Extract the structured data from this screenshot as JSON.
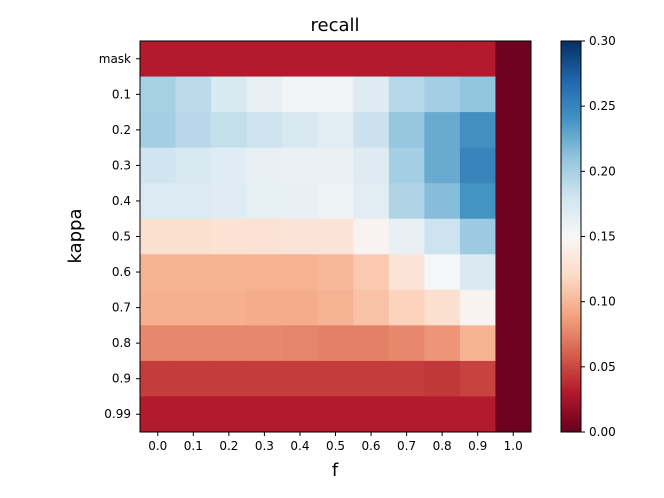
{
  "chart_data": {
    "type": "heatmap",
    "title": "recall",
    "xlabel": "f",
    "ylabel": "kappa",
    "x_categories": [
      "0.0",
      "0.1",
      "0.2",
      "0.3",
      "0.4",
      "0.5",
      "0.6",
      "0.7",
      "0.8",
      "0.9",
      "1.0"
    ],
    "y_categories": [
      "mask",
      "0.1",
      "0.2",
      "0.3",
      "0.4",
      "0.5",
      "0.6",
      "0.7",
      "0.8",
      "0.9",
      "0.99"
    ],
    "values": [
      [
        0.031,
        0.031,
        0.031,
        0.031,
        0.031,
        0.031,
        0.031,
        0.031,
        0.031,
        0.031,
        0.003
      ],
      [
        0.2,
        0.19,
        0.174,
        0.163,
        0.155,
        0.155,
        0.17,
        0.193,
        0.202,
        0.21,
        0.003
      ],
      [
        0.202,
        0.192,
        0.186,
        0.182,
        0.174,
        0.167,
        0.183,
        0.208,
        0.226,
        0.242,
        0.003
      ],
      [
        0.18,
        0.174,
        0.168,
        0.162,
        0.16,
        0.16,
        0.17,
        0.202,
        0.226,
        0.25,
        0.003
      ],
      [
        0.171,
        0.171,
        0.168,
        0.164,
        0.161,
        0.157,
        0.167,
        0.196,
        0.215,
        0.24,
        0.003
      ],
      [
        0.125,
        0.125,
        0.127,
        0.128,
        0.13,
        0.13,
        0.146,
        0.162,
        0.182,
        0.205,
        0.003
      ],
      [
        0.098,
        0.098,
        0.098,
        0.097,
        0.097,
        0.1,
        0.11,
        0.13,
        0.152,
        0.172,
        0.003
      ],
      [
        0.096,
        0.096,
        0.096,
        0.094,
        0.094,
        0.098,
        0.106,
        0.116,
        0.125,
        0.146,
        0.003
      ],
      [
        0.077,
        0.077,
        0.077,
        0.077,
        0.076,
        0.074,
        0.074,
        0.077,
        0.083,
        0.098,
        0.003
      ],
      [
        0.045,
        0.045,
        0.045,
        0.045,
        0.045,
        0.045,
        0.045,
        0.045,
        0.043,
        0.048,
        0.003
      ],
      [
        0.031,
        0.031,
        0.031,
        0.031,
        0.031,
        0.031,
        0.031,
        0.031,
        0.031,
        0.031,
        0.003
      ]
    ],
    "colormap": "RdBu",
    "vmin": 0.0,
    "vmax": 0.3,
    "colorbar_ticks": [
      "0.00",
      "0.05",
      "0.10",
      "0.15",
      "0.20",
      "0.25",
      "0.30"
    ],
    "grid": false,
    "legend": "colorbar-right"
  }
}
